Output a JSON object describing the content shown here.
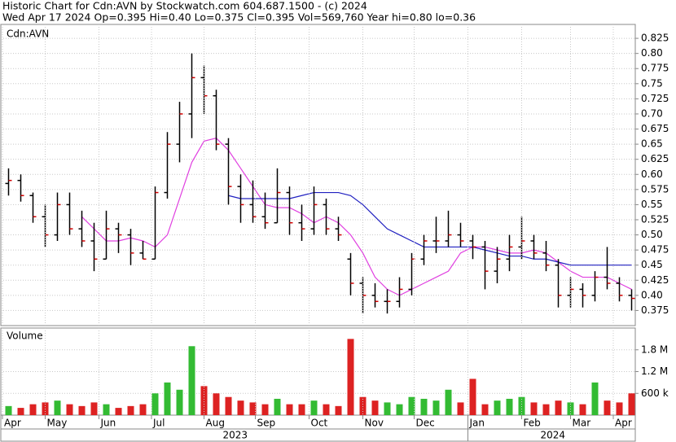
{
  "chart_data": [
    {
      "type": "ohlc",
      "title": "Historic Chart for Cdn:AVN by Stockwatch.com 604.687.1500 - (c) 2024",
      "subtitle": "Wed Apr 17 2024   Op=0.395  Hi=0.40  Lo=0.375  Cl=0.395  Vol=569,760  Year hi=0.80  lo=0.36",
      "label": "Cdn:AVN",
      "open": [
        0.585,
        0.59,
        0.565,
        0.53,
        0.5,
        0.55,
        0.51,
        0.49,
        0.46,
        0.51,
        0.5,
        0.47,
        0.46,
        0.57,
        0.65,
        0.7,
        0.76,
        0.73,
        0.65,
        0.58,
        0.55,
        0.53,
        0.52,
        0.57,
        0.52,
        0.51,
        0.55,
        0.51,
        0.46,
        0.42,
        0.4,
        0.39,
        0.39,
        0.41,
        0.46,
        0.49,
        0.49,
        0.5,
        0.49,
        0.48,
        0.44,
        0.46,
        0.48,
        0.49,
        0.47,
        0.45,
        0.4,
        0.41,
        0.4,
        0.43,
        0.42,
        0.4
      ],
      "high": [
        0.61,
        0.6,
        0.57,
        0.55,
        0.57,
        0.57,
        0.54,
        0.52,
        0.54,
        0.52,
        0.51,
        0.49,
        0.58,
        0.67,
        0.72,
        0.8,
        0.78,
        0.74,
        0.66,
        0.6,
        0.59,
        0.57,
        0.61,
        0.58,
        0.55,
        0.58,
        0.56,
        0.53,
        0.47,
        0.43,
        0.42,
        0.41,
        0.43,
        0.47,
        0.5,
        0.53,
        0.54,
        0.52,
        0.5,
        0.49,
        0.48,
        0.5,
        0.53,
        0.5,
        0.49,
        0.46,
        0.43,
        0.42,
        0.44,
        0.48,
        0.43,
        0.41
      ],
      "low": [
        0.565,
        0.555,
        0.52,
        0.48,
        0.49,
        0.5,
        0.48,
        0.44,
        0.46,
        0.47,
        0.45,
        0.46,
        0.46,
        0.56,
        0.62,
        0.66,
        0.7,
        0.64,
        0.55,
        0.52,
        0.52,
        0.51,
        0.52,
        0.5,
        0.49,
        0.5,
        0.5,
        0.49,
        0.4,
        0.37,
        0.38,
        0.37,
        0.38,
        0.4,
        0.45,
        0.47,
        0.48,
        0.48,
        0.46,
        0.41,
        0.42,
        0.44,
        0.46,
        0.46,
        0.44,
        0.38,
        0.38,
        0.38,
        0.39,
        0.41,
        0.39,
        0.375
      ],
      "close": [
        0.59,
        0.565,
        0.53,
        0.5,
        0.55,
        0.51,
        0.49,
        0.46,
        0.51,
        0.5,
        0.47,
        0.46,
        0.57,
        0.65,
        0.7,
        0.76,
        0.73,
        0.65,
        0.58,
        0.55,
        0.53,
        0.52,
        0.57,
        0.52,
        0.51,
        0.55,
        0.51,
        0.5,
        0.42,
        0.4,
        0.39,
        0.39,
        0.41,
        0.46,
        0.49,
        0.49,
        0.5,
        0.49,
        0.48,
        0.44,
        0.46,
        0.48,
        0.49,
        0.47,
        0.45,
        0.4,
        0.41,
        0.4,
        0.43,
        0.42,
        0.4,
        0.395
      ],
      "bar_color": "#000000",
      "close_color": "#d00000",
      "moving_averages": [
        {
          "color": "#e040e0",
          "values": [
            null,
            null,
            null,
            null,
            null,
            null,
            0.53,
            0.51,
            0.49,
            0.49,
            0.495,
            0.49,
            0.48,
            0.5,
            0.56,
            0.62,
            0.655,
            0.66,
            0.64,
            0.61,
            0.58,
            0.55,
            0.545,
            0.545,
            0.535,
            0.52,
            0.53,
            0.52,
            0.5,
            0.47,
            0.43,
            0.41,
            0.4,
            0.41,
            0.42,
            0.43,
            0.44,
            0.47,
            0.48,
            0.48,
            0.475,
            0.47,
            0.47,
            0.475,
            0.47,
            0.455,
            0.44,
            0.43,
            0.43,
            0.43,
            0.42,
            0.41
          ]
        },
        {
          "color": "#2020c0",
          "values": [
            null,
            null,
            null,
            null,
            null,
            null,
            null,
            null,
            null,
            null,
            null,
            null,
            null,
            null,
            null,
            null,
            null,
            null,
            0.565,
            0.56,
            0.56,
            0.56,
            0.56,
            0.56,
            0.565,
            0.57,
            0.57,
            0.57,
            0.565,
            0.55,
            0.53,
            0.51,
            0.5,
            0.49,
            0.48,
            0.48,
            0.48,
            0.48,
            0.48,
            0.475,
            0.47,
            0.465,
            0.465,
            0.46,
            0.46,
            0.455,
            0.45,
            0.45,
            0.45,
            0.45,
            0.45,
            0.45
          ]
        }
      ],
      "ylim": [
        0.35,
        0.848
      ],
      "yticks": [
        0.375,
        {
          "value": 0.4,
          "label": "0.40"
        },
        0.425,
        0.45,
        0.475,
        {
          "value": 0.5,
          "label": "0.50"
        },
        0.525,
        0.55,
        0.575,
        {
          "value": 0.6,
          "label": "0.60"
        },
        0.625,
        0.65,
        0.675,
        {
          "value": 0.7,
          "label": "0.70"
        },
        0.725,
        0.75,
        0.775,
        {
          "value": 0.8,
          "label": "0.80"
        },
        0.825
      ],
      "grid": true
    },
    {
      "type": "bar",
      "label": "Volume",
      "values": [
        250000,
        200000,
        300000,
        350000,
        400000,
        300000,
        250000,
        350000,
        300000,
        200000,
        250000,
        300000,
        600000,
        900000,
        700000,
        1900000,
        800000,
        600000,
        500000,
        400000,
        350000,
        300000,
        450000,
        300000,
        300000,
        400000,
        300000,
        250000,
        2100000,
        500000,
        400000,
        350000,
        300000,
        500000,
        450000,
        400000,
        700000,
        350000,
        1000000,
        300000,
        400000,
        450000,
        500000,
        350000,
        300000,
        400000,
        350000,
        300000,
        900000,
        400000,
        350000,
        600000
      ],
      "up_color": "#33bb33",
      "down_color": "#dd2222",
      "ylim": [
        0,
        2400000
      ],
      "yticks": [
        {
          "value": 600000,
          "label": "600 k"
        },
        {
          "value": 1200000,
          "label": "1.2 M"
        },
        {
          "value": 1800000,
          "label": "1.8 M"
        }
      ],
      "xticks": [
        {
          "value": 0,
          "label": "Apr"
        },
        {
          "value": 3.5,
          "label": "May"
        },
        {
          "value": 7.9,
          "label": "Jun"
        },
        {
          "value": 12.2,
          "label": "Jul"
        },
        {
          "value": 16.5,
          "label": "Aug"
        },
        {
          "value": 20.7,
          "label": "Sep"
        },
        {
          "value": 25.1,
          "label": "Oct"
        },
        {
          "value": 29.5,
          "label": "Nov"
        },
        {
          "value": 33.7,
          "label": "Dec"
        },
        {
          "value": 38.1,
          "label": "Jan"
        },
        {
          "value": 42.5,
          "label": "Feb"
        },
        {
          "value": 46.5,
          "label": "Mar"
        },
        {
          "value": 50,
          "label": "Apr"
        }
      ],
      "years": [
        {
          "start": 0,
          "label": "2023"
        },
        {
          "start": 38.1,
          "label": "2024"
        }
      ],
      "grid": true
    }
  ]
}
